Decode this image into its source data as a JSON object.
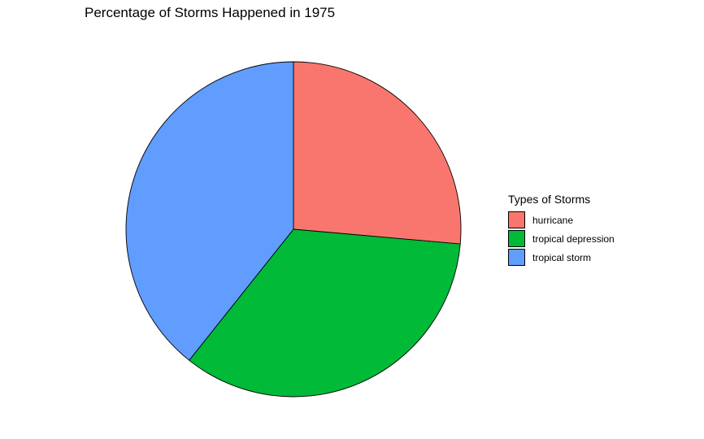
{
  "chart_data": {
    "type": "pie",
    "title": "Percentage of Storms Happened in 1975",
    "legend_title": "Types of Storms",
    "legend_position": "right",
    "categories": [
      "hurricane",
      "tropical depression",
      "tropical storm"
    ],
    "values": [
      26.4,
      34.3,
      39.3
    ],
    "colors": [
      "#F8766D",
      "#00BA38",
      "#619CFF"
    ],
    "start_angle_deg": 0,
    "direction": "clockwise"
  }
}
